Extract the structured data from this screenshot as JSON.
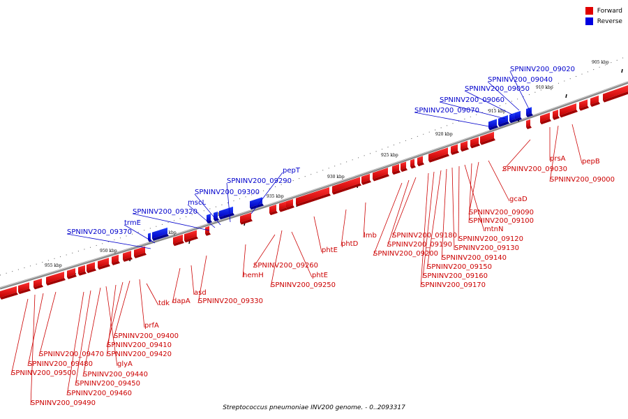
{
  "legend": {
    "forward_label": "Forward",
    "reverse_label": "Reverse",
    "forward_color": "#e00000",
    "reverse_color": "#0000e0"
  },
  "caption": "Streptococcus pneumoniae INV200 genome. - 0..2093317",
  "ticks": [
    "905 kbp",
    "910 kbp",
    "915 kbp",
    "920 kbp",
    "925 kbp",
    "930 kbp",
    "935 kbp",
    "940 kbp",
    "945 kbp",
    "950 kbp",
    "955 kbp"
  ],
  "reverse_labels": [
    "SPNINV200_09020",
    "SPNINV200_09040",
    "SPNINV200_09050",
    "SPNINV200_09060",
    "SPNINV200_09070",
    "pepT",
    "SPNINV200_09290",
    "SPNINV200_09300",
    "mscL",
    "SPNINV200_09320",
    "trmE",
    "SPNINV200_09370"
  ],
  "forward_labels": [
    "pepB",
    "SPNINV200_09000",
    "prsA",
    "SPNINV200_09030",
    "gcaD",
    "SPNINV200_09090",
    "SPNINV200_09100",
    "mtnN",
    "SPNINV200_09120",
    "SPNINV200_09130",
    "SPNINV200_09140",
    "SPNINV200_09150",
    "SPNINV200_09160",
    "SPNINV200_09170",
    "SPNINV200_09180",
    "SPNINV200_09190",
    "SPNINV200_09200",
    "lmb",
    "phtD",
    "phtE",
    "phtE",
    "SPNINV200_09250",
    "SPNINV200_09260",
    "hemH",
    "SPNINV200_09330",
    "asd",
    "dapA",
    "tdk",
    "prfA",
    "SPNINV200_09400",
    "SPNINV200_09410",
    "SPNINV200_09420",
    "glyA",
    "SPNINV200_09440",
    "SPNINV200_09450",
    "SPNINV200_09460",
    "SPNINV200_09470",
    "SPNINV200_09480",
    "SPNINV200_09490",
    "SPNINV200_09500"
  ]
}
